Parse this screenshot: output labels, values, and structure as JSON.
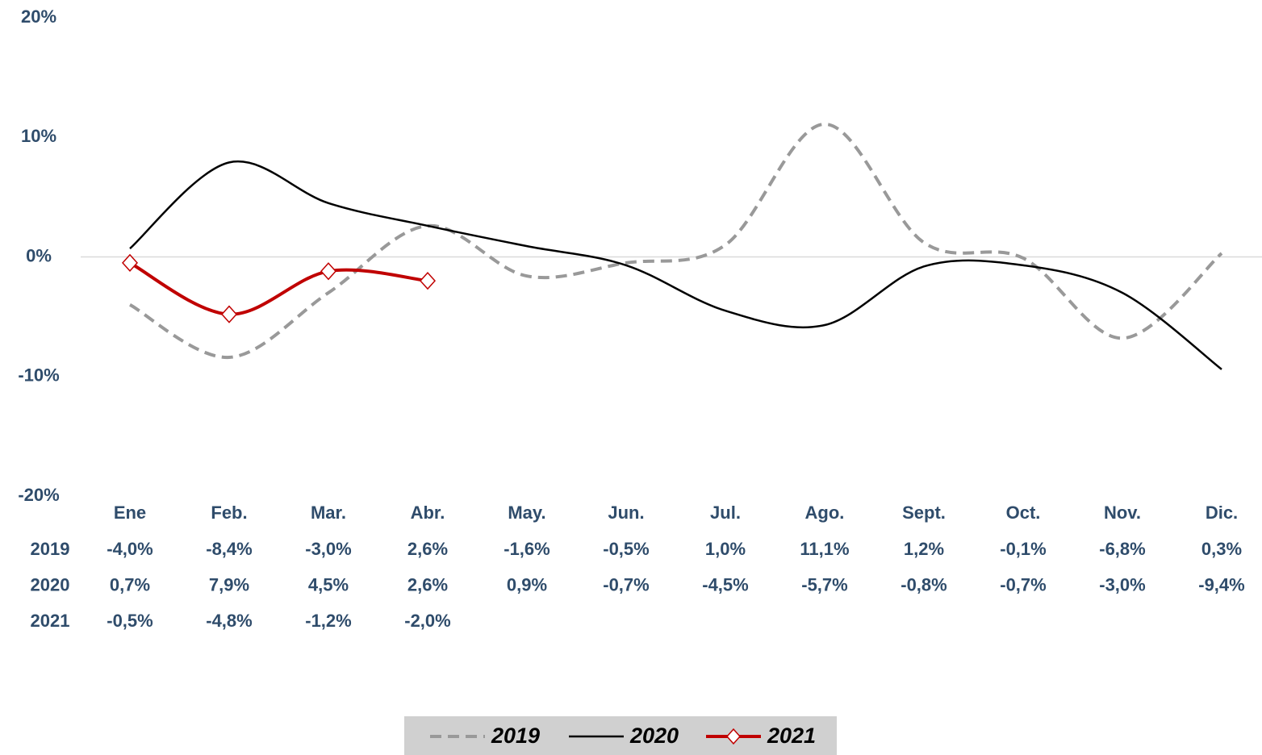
{
  "chart_data": {
    "type": "line",
    "categories": [
      "Ene",
      "Feb.",
      "Mar.",
      "Abr.",
      "May.",
      "Jun.",
      "Jul.",
      "Ago.",
      "Sept.",
      "Oct.",
      "Nov.",
      "Dic."
    ],
    "ylim": [
      -20,
      20
    ],
    "yticks": [
      {
        "value": 20,
        "label": "20%"
      },
      {
        "value": 10,
        "label": "10%"
      },
      {
        "value": 0,
        "label": "0%"
      },
      {
        "value": -10,
        "label": "-10%"
      },
      {
        "value": -20,
        "label": "-20%"
      }
    ],
    "grid": false,
    "zero_line": true,
    "legend": "bottom",
    "series": [
      {
        "name": "2019",
        "color": "#999999",
        "line_style": "dashed",
        "marker": "none",
        "values": [
          -4.0,
          -8.4,
          -3.0,
          2.6,
          -1.6,
          -0.5,
          1.0,
          11.1,
          1.2,
          -0.1,
          -6.8,
          0.3
        ],
        "value_labels": [
          "-4,0%",
          "-8,4%",
          "-3,0%",
          "2,6%",
          "-1,6%",
          "-0,5%",
          "1,0%",
          "11,1%",
          "1,2%",
          "-0,1%",
          "-6,8%",
          "0,3%"
        ]
      },
      {
        "name": "2020",
        "color": "#000000",
        "line_style": "solid",
        "marker": "none",
        "values": [
          0.7,
          7.9,
          4.5,
          2.6,
          0.9,
          -0.7,
          -4.5,
          -5.7,
          -0.8,
          -0.7,
          -3.0,
          -9.4
        ],
        "value_labels": [
          "0,7%",
          "7,9%",
          "4,5%",
          "2,6%",
          "0,9%",
          "-0,7%",
          "-4,5%",
          "-5,7%",
          "-0,8%",
          "-0,7%",
          "-3,0%",
          "-9,4%"
        ]
      },
      {
        "name": "2021",
        "color": "#c00000",
        "line_style": "solid",
        "marker": "diamond",
        "values": [
          -0.5,
          -4.8,
          -1.2,
          -2.0,
          null,
          null,
          null,
          null,
          null,
          null,
          null,
          null
        ],
        "value_labels": [
          "-0,5%",
          "-4,8%",
          "-1,2%",
          "-2,0%",
          null,
          null,
          null,
          null,
          null,
          null,
          null,
          null
        ]
      }
    ]
  }
}
